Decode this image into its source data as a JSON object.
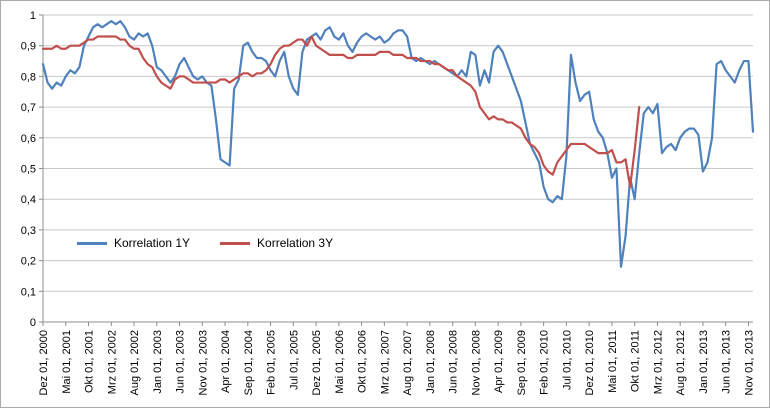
{
  "chart_data": {
    "type": "line",
    "title": "",
    "xlabel": "",
    "ylabel": "",
    "ylim": [
      0,
      1
    ],
    "grid": true,
    "legend_position": "inside-bottom-left",
    "x_frequency": "monthly",
    "x_tick_every": 5,
    "colors": {
      "background": "#ffffff",
      "frame_border": "#ababab",
      "grid": "#c9c9c9",
      "axis": "#8c8c8c",
      "text": "#000000"
    },
    "y_ticks": [
      "0",
      "0,1",
      "0,2",
      "0,3",
      "0,4",
      "0,5",
      "0,6",
      "0,7",
      "0,8",
      "0,9",
      "1"
    ],
    "x_tick_labels": [
      "Dez 01, 2000",
      "Mai 01, 2001",
      "Okt 01, 2001",
      "Mrz 01, 2002",
      "Aug 01, 2002",
      "Jan 01, 2003",
      "Jun 01, 2003",
      "Nov 01, 2003",
      "Apr 01, 2004",
      "Sep 01, 2004",
      "Feb 01, 2005",
      "Jul 01, 2005",
      "Dez 01, 2005",
      "Mai 01, 2006",
      "Okt 01, 2006",
      "Mrz 01, 2007",
      "Aug 01, 2007",
      "Jan 01, 2008",
      "Jun 01, 2008",
      "Nov 01, 2008",
      "Apr 01, 2009",
      "Sep 01, 2009",
      "Feb 01, 2010",
      "Jul 01, 2010",
      "Dez 01, 2010",
      "Mai 01, 2011",
      "Okt 01, 2011",
      "Mrz 01, 2012",
      "Aug 01, 2012",
      "Jan 01, 2013",
      "Jun 01, 2013",
      "Nov 01, 2013"
    ],
    "series": [
      {
        "name": "Korrelation 1Y",
        "color": "#4F81BD",
        "values": [
          0.84,
          0.78,
          0.76,
          0.78,
          0.77,
          0.8,
          0.82,
          0.81,
          0.83,
          0.9,
          0.93,
          0.96,
          0.97,
          0.96,
          0.97,
          0.98,
          0.97,
          0.98,
          0.96,
          0.93,
          0.92,
          0.94,
          0.93,
          0.94,
          0.9,
          0.83,
          0.82,
          0.8,
          0.78,
          0.8,
          0.84,
          0.86,
          0.83,
          0.8,
          0.79,
          0.8,
          0.78,
          0.77,
          0.66,
          0.53,
          0.52,
          0.51,
          0.76,
          0.79,
          0.9,
          0.91,
          0.88,
          0.86,
          0.86,
          0.85,
          0.82,
          0.8,
          0.85,
          0.88,
          0.8,
          0.76,
          0.74,
          0.88,
          0.92,
          0.93,
          0.94,
          0.92,
          0.95,
          0.96,
          0.93,
          0.92,
          0.94,
          0.9,
          0.88,
          0.91,
          0.93,
          0.94,
          0.93,
          0.92,
          0.93,
          0.91,
          0.92,
          0.94,
          0.95,
          0.95,
          0.93,
          0.86,
          0.85,
          0.86,
          0.85,
          0.84,
          0.85,
          0.84,
          0.83,
          0.82,
          0.81,
          0.8,
          0.82,
          0.8,
          0.88,
          0.87,
          0.77,
          0.82,
          0.78,
          0.88,
          0.9,
          0.88,
          0.84,
          0.8,
          0.76,
          0.72,
          0.65,
          0.58,
          0.55,
          0.52,
          0.44,
          0.4,
          0.39,
          0.41,
          0.4,
          0.54,
          0.87,
          0.78,
          0.72,
          0.74,
          0.75,
          0.66,
          0.62,
          0.6,
          0.55,
          0.47,
          0.5,
          0.18,
          0.28,
          0.47,
          0.4,
          0.55,
          0.68,
          0.7,
          0.68,
          0.71,
          0.55,
          0.57,
          0.58,
          0.56,
          0.6,
          0.62,
          0.63,
          0.63,
          0.61,
          0.49,
          0.52,
          0.6,
          0.84,
          0.85,
          0.82,
          0.8,
          0.78,
          0.82,
          0.85,
          0.85,
          0.62
        ]
      },
      {
        "name": "Korrelation 3Y",
        "color": "#C0504D",
        "values": [
          0.89,
          0.89,
          0.89,
          0.9,
          0.89,
          0.89,
          0.9,
          0.9,
          0.9,
          0.91,
          0.92,
          0.92,
          0.93,
          0.93,
          0.93,
          0.93,
          0.93,
          0.92,
          0.92,
          0.9,
          0.89,
          0.89,
          0.86,
          0.84,
          0.83,
          0.8,
          0.78,
          0.77,
          0.76,
          0.79,
          0.8,
          0.8,
          0.79,
          0.78,
          0.78,
          0.78,
          0.78,
          0.78,
          0.78,
          0.79,
          0.79,
          0.78,
          0.79,
          0.8,
          0.81,
          0.81,
          0.8,
          0.81,
          0.81,
          0.82,
          0.84,
          0.87,
          0.89,
          0.9,
          0.9,
          0.91,
          0.92,
          0.92,
          0.9,
          0.93,
          0.9,
          0.89,
          0.88,
          0.87,
          0.87,
          0.87,
          0.87,
          0.86,
          0.86,
          0.87,
          0.87,
          0.87,
          0.87,
          0.87,
          0.88,
          0.88,
          0.88,
          0.87,
          0.87,
          0.87,
          0.86,
          0.86,
          0.86,
          0.85,
          0.85,
          0.85,
          0.84,
          0.84,
          0.83,
          0.82,
          0.82,
          0.8,
          0.79,
          0.78,
          0.77,
          0.75,
          0.7,
          0.68,
          0.66,
          0.67,
          0.66,
          0.66,
          0.65,
          0.65,
          0.64,
          0.63,
          0.6,
          0.58,
          0.57,
          0.55,
          0.51,
          0.49,
          0.48,
          0.52,
          0.54,
          0.56,
          0.58,
          0.58,
          0.58,
          0.58,
          0.57,
          0.56,
          0.55,
          0.55,
          0.55,
          0.56,
          0.52,
          0.52,
          0.53,
          0.44,
          0.56,
          0.7
        ]
      }
    ]
  }
}
